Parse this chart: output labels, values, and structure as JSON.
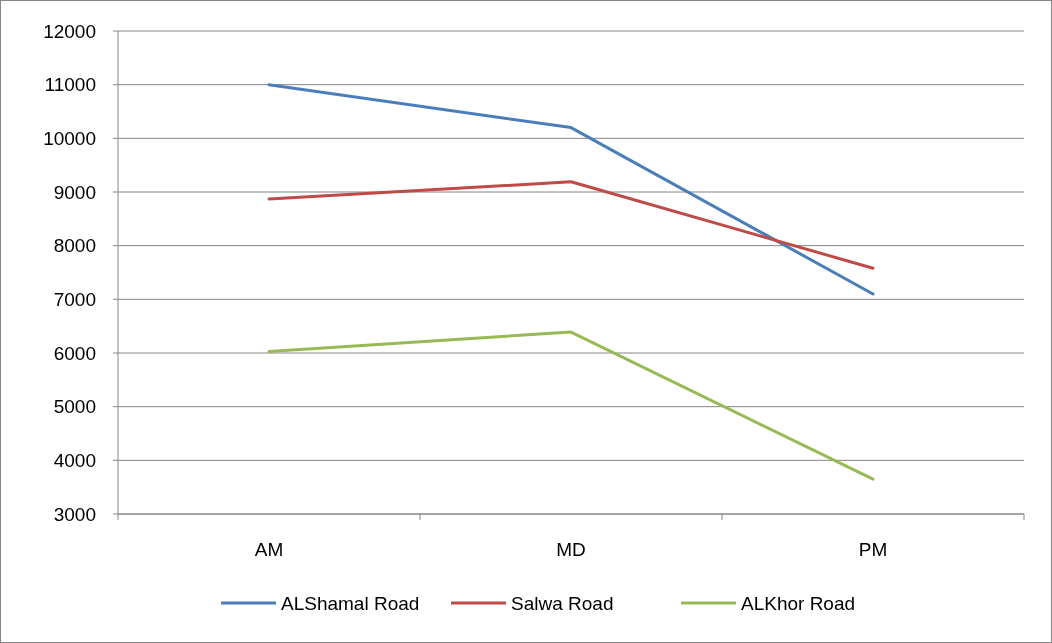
{
  "chart_data": {
    "type": "line",
    "categories": [
      "AM",
      "MD",
      "PM"
    ],
    "series": [
      {
        "name": "ALShamal Road",
        "color": "#4a7ebb",
        "values": [
          11000,
          10200,
          7100
        ]
      },
      {
        "name": "Salwa Road",
        "color": "#be4b48",
        "values": [
          8870,
          9190,
          7580
        ]
      },
      {
        "name": "ALKhor Road",
        "color": "#98b954",
        "values": [
          6030,
          6390,
          3650
        ]
      }
    ],
    "ylim": [
      3000,
      12000
    ],
    "yticks": [
      3000,
      4000,
      5000,
      6000,
      7000,
      8000,
      9000,
      10000,
      11000,
      12000
    ],
    "grid": "y",
    "legend": "bottom",
    "marker": "none",
    "line_style": "solid"
  }
}
